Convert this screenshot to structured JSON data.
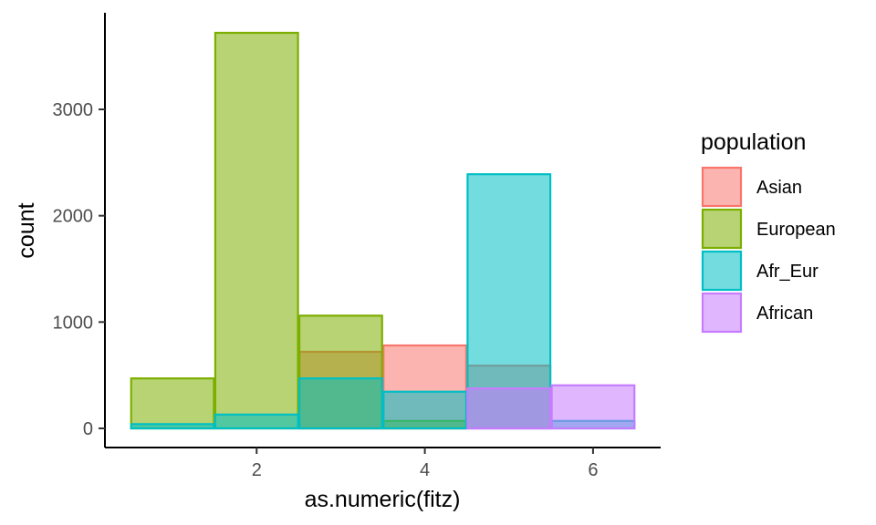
{
  "chart_data": {
    "type": "bar",
    "xlabel": "as.numeric(fitz)",
    "ylabel": "count",
    "xlim": [
      0.5,
      6.5
    ],
    "ylim": [
      0,
      3720
    ],
    "xticks": [
      2,
      4,
      6
    ],
    "yticks": [
      0,
      1000,
      2000,
      3000
    ],
    "x": [
      1,
      2,
      3,
      4,
      5,
      6
    ],
    "bin_width": 1,
    "grid": false,
    "legend": {
      "title": "population",
      "position": "right"
    },
    "series": [
      {
        "name": "Asian",
        "color": "#F8766D",
        "values": [
          0,
          0,
          720,
          780,
          590,
          0
        ]
      },
      {
        "name": "European",
        "color": "#7CAE00",
        "values": [
          470,
          3720,
          1060,
          70,
          0,
          0
        ]
      },
      {
        "name": "Afr_Eur",
        "color": "#00BFC4",
        "values": [
          40,
          130,
          470,
          345,
          2390,
          70
        ]
      },
      {
        "name": "African",
        "color": "#C77CFF",
        "values": [
          0,
          0,
          0,
          0,
          375,
          405
        ]
      }
    ]
  }
}
